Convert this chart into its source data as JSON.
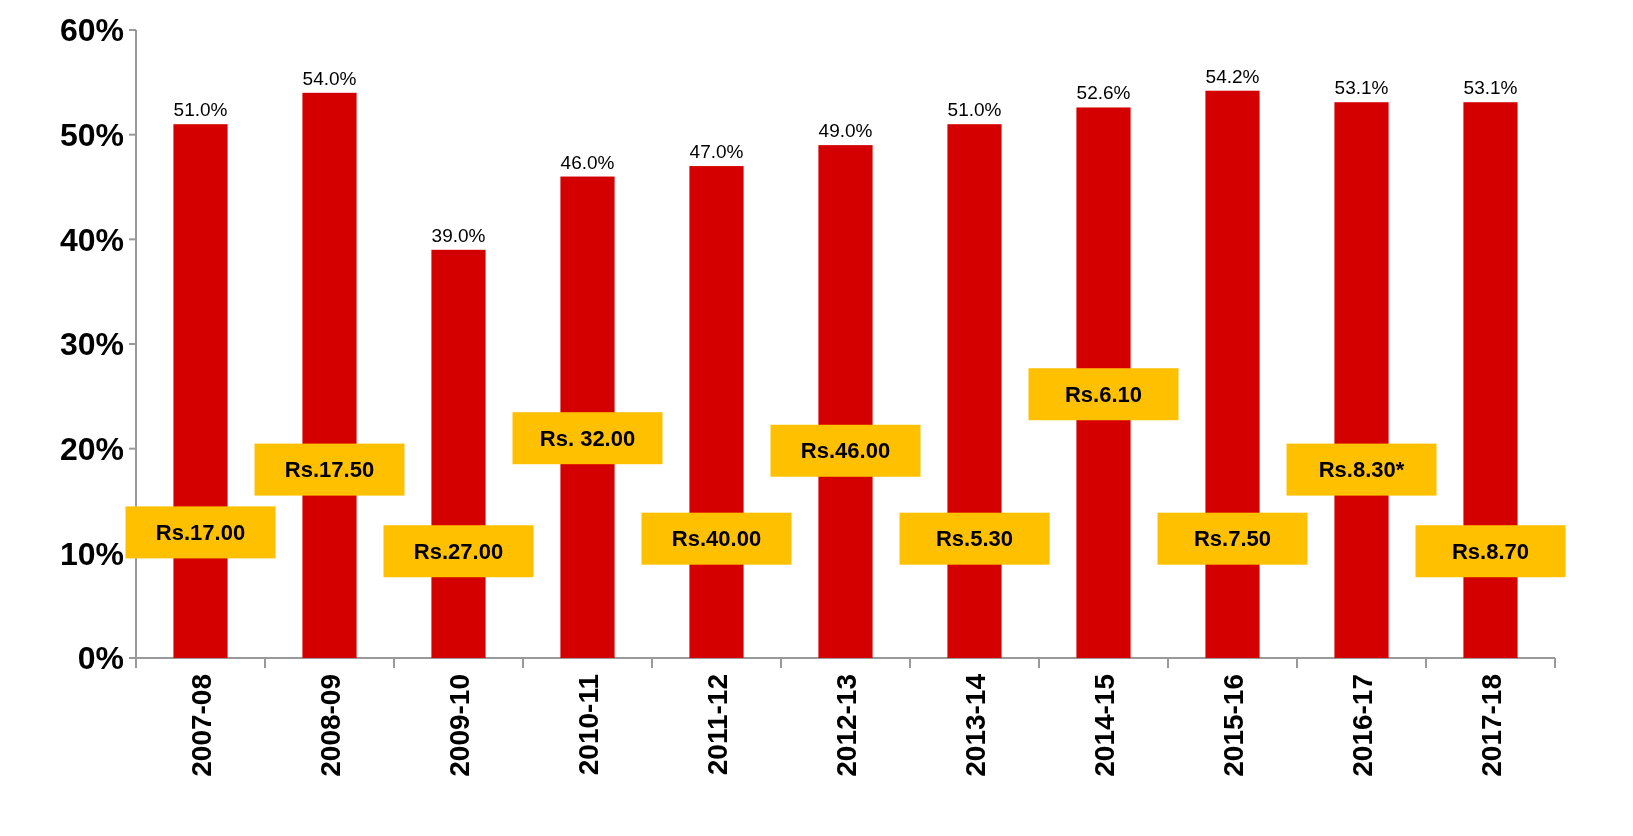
{
  "chart_data": {
    "type": "bar",
    "categories": [
      "2007-08",
      "2008-09",
      "2009-10",
      "2010-11",
      "2011-12",
      "2012-13",
      "2013-14",
      "2014-15",
      "2015-16",
      "2016-17",
      "2017-18"
    ],
    "values": [
      51.0,
      54.0,
      39.0,
      46.0,
      47.0,
      49.0,
      51.0,
      52.6,
      54.2,
      53.1,
      53.1
    ],
    "value_labels": [
      "51.0%",
      "54.0%",
      "39.0%",
      "46.0%",
      "47.0%",
      "49.0%",
      "51.0%",
      "52.6%",
      "54.2%",
      "53.1%",
      "53.1%"
    ],
    "color": "#d40000",
    "ylim": [
      0,
      60
    ],
    "yticks": [
      {
        "value": 0,
        "label": "0%"
      },
      {
        "value": 10,
        "label": "10%"
      },
      {
        "value": 20,
        "label": "20%"
      },
      {
        "value": 30,
        "label": "30%"
      },
      {
        "value": 40,
        "label": "40%"
      },
      {
        "value": 50,
        "label": "50%"
      },
      {
        "value": 60,
        "label": "60%"
      }
    ],
    "grid": false,
    "annotations": [
      "Rs.17.00",
      "Rs.17.50",
      "Rs.27.00",
      "Rs. 32.00",
      "Rs.40.00",
      "Rs.46.00",
      "Rs.5.30",
      "Rs.6.10",
      "Rs.7.50",
      "Rs.8.30*",
      "Rs.8.70"
    ]
  }
}
